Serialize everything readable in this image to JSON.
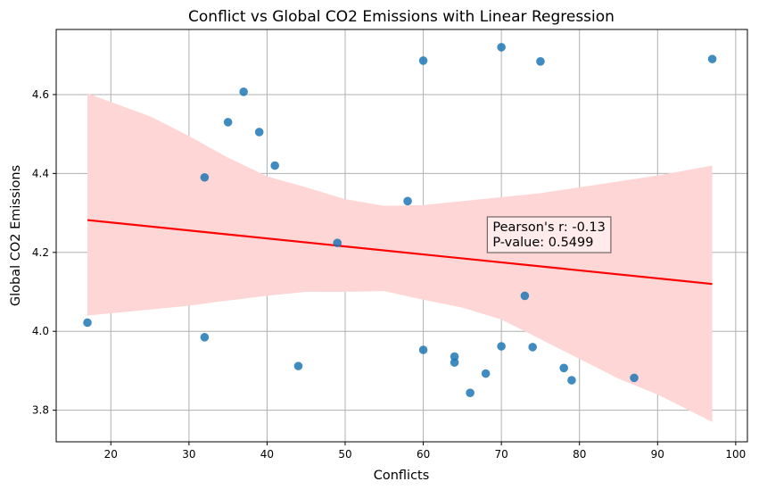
{
  "chart_data": {
    "type": "scatter",
    "title": "Conflict vs Global CO2 Emissions with Linear Regression",
    "xlabel": "Conflicts",
    "ylabel": "Global CO2 Emissions",
    "xlim": [
      13,
      101.5
    ],
    "ylim": [
      3.72,
      4.765
    ],
    "xticks": [
      20,
      30,
      40,
      50,
      60,
      70,
      80,
      90,
      100
    ],
    "yticks": [
      3.8,
      4.0,
      4.2,
      4.4,
      4.6
    ],
    "grid": true,
    "point_color": "#1f77b4",
    "regression_color": "#ff0000",
    "band_color": "#ffd6d6",
    "points": [
      {
        "x": 17,
        "y": 4.022
      },
      {
        "x": 32,
        "y": 4.39
      },
      {
        "x": 32,
        "y": 3.985
      },
      {
        "x": 35,
        "y": 4.53
      },
      {
        "x": 37,
        "y": 4.607
      },
      {
        "x": 39,
        "y": 4.505
      },
      {
        "x": 41,
        "y": 4.42
      },
      {
        "x": 44,
        "y": 3.912
      },
      {
        "x": 49,
        "y": 4.224
      },
      {
        "x": 58,
        "y": 4.33
      },
      {
        "x": 60,
        "y": 4.686
      },
      {
        "x": 60,
        "y": 3.953
      },
      {
        "x": 64,
        "y": 3.936
      },
      {
        "x": 64,
        "y": 3.921
      },
      {
        "x": 66,
        "y": 3.844
      },
      {
        "x": 68,
        "y": 3.893
      },
      {
        "x": 70,
        "y": 4.72
      },
      {
        "x": 70,
        "y": 3.962
      },
      {
        "x": 73,
        "y": 4.09
      },
      {
        "x": 74,
        "y": 3.96
      },
      {
        "x": 75,
        "y": 4.684
      },
      {
        "x": 78,
        "y": 3.907
      },
      {
        "x": 79,
        "y": 3.876
      },
      {
        "x": 87,
        "y": 3.882
      },
      {
        "x": 97,
        "y": 4.69
      }
    ],
    "regression_line": [
      {
        "x": 17,
        "y": 4.282
      },
      {
        "x": 97,
        "y": 4.12
      }
    ],
    "confidence_band": [
      {
        "x": 17,
        "lower": 4.04,
        "upper": 4.603
      },
      {
        "x": 25,
        "lower": 4.055,
        "upper": 4.545
      },
      {
        "x": 30,
        "lower": 4.065,
        "upper": 4.495
      },
      {
        "x": 35,
        "lower": 4.078,
        "upper": 4.44
      },
      {
        "x": 40,
        "lower": 4.09,
        "upper": 4.393
      },
      {
        "x": 45,
        "lower": 4.1,
        "upper": 4.365
      },
      {
        "x": 50,
        "lower": 4.1,
        "upper": 4.335
      },
      {
        "x": 55,
        "lower": 4.102,
        "upper": 4.318
      },
      {
        "x": 60,
        "lower": 4.08,
        "upper": 4.32
      },
      {
        "x": 65,
        "lower": 4.06,
        "upper": 4.33
      },
      {
        "x": 70,
        "lower": 4.03,
        "upper": 4.34
      },
      {
        "x": 75,
        "lower": 3.98,
        "upper": 4.35
      },
      {
        "x": 80,
        "lower": 3.93,
        "upper": 4.365
      },
      {
        "x": 85,
        "lower": 3.88,
        "upper": 4.38
      },
      {
        "x": 90,
        "lower": 3.84,
        "upper": 4.395
      },
      {
        "x": 97,
        "lower": 3.77,
        "upper": 4.42
      }
    ],
    "annotation": {
      "line1": "Pearson's r: -0.13",
      "line2": "P-value: 0.5499",
      "x": 68.2,
      "y": 4.29
    }
  }
}
